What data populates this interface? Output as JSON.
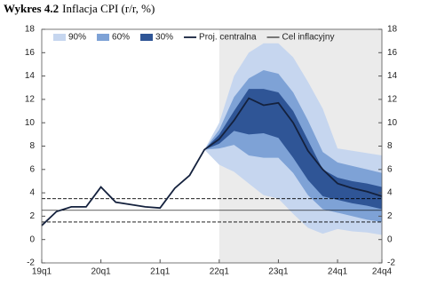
{
  "chart_data": {
    "type": "fan",
    "title_label": "Wykres 4.2",
    "title": "Inflacja CPI (r/r, %)",
    "categories": [
      "19q1",
      null,
      null,
      null,
      "20q1",
      null,
      null,
      null,
      "21q1",
      null,
      null,
      null,
      "22q1",
      null,
      null,
      null,
      "23q1",
      null,
      null,
      null,
      "24q1",
      null,
      null,
      "24q4"
    ],
    "shade_from": "22q1",
    "shade_color": "#ebebeb",
    "series": [
      {
        "name": "90%",
        "color": "#c6d6ef",
        "lower": [
          null,
          null,
          null,
          null,
          null,
          null,
          null,
          null,
          null,
          null,
          null,
          7.7,
          6.4,
          5.8,
          4.8,
          3.8,
          3.5,
          2.2,
          1.0,
          0.5,
          0.9,
          0.7,
          0.6,
          0.4
        ],
        "upper": [
          null,
          null,
          null,
          null,
          null,
          null,
          null,
          null,
          null,
          null,
          null,
          7.7,
          10.0,
          14.0,
          16.0,
          16.8,
          16.8,
          15.6,
          13.5,
          11.2,
          7.8,
          7.6,
          7.4,
          7.2
        ]
      },
      {
        "name": "60%",
        "color": "#7ea2d6",
        "lower": [
          null,
          null,
          null,
          null,
          null,
          null,
          null,
          null,
          null,
          null,
          null,
          7.7,
          7.8,
          8.1,
          7.2,
          7.0,
          7.0,
          5.7,
          3.8,
          2.6,
          2.3,
          2.0,
          1.7,
          1.5
        ],
        "upper": [
          null,
          null,
          null,
          null,
          null,
          null,
          null,
          null,
          null,
          null,
          null,
          7.7,
          9.4,
          12.2,
          13.8,
          14.5,
          14.2,
          12.6,
          10.2,
          7.5,
          6.6,
          6.3,
          6.0,
          5.7
        ]
      },
      {
        "name": "30%",
        "color": "#2f5596",
        "lower": [
          null,
          null,
          null,
          null,
          null,
          null,
          null,
          null,
          null,
          null,
          null,
          7.7,
          8.2,
          9.3,
          9.0,
          9.1,
          8.7,
          7.0,
          5.1,
          3.7,
          3.4,
          3.1,
          2.9,
          2.6
        ],
        "upper": [
          null,
          null,
          null,
          null,
          null,
          null,
          null,
          null,
          null,
          null,
          null,
          7.7,
          9.0,
          11.0,
          12.9,
          12.9,
          12.6,
          11.0,
          8.5,
          6.0,
          5.3,
          5.0,
          4.8,
          4.5
        ]
      },
      {
        "name": "Proj. centralna",
        "color": "#14213d",
        "values": [
          1.2,
          2.4,
          2.8,
          2.8,
          4.5,
          3.2,
          3.0,
          2.8,
          2.7,
          4.4,
          5.5,
          7.7,
          8.6,
          10.2,
          12.1,
          11.5,
          11.7,
          10.0,
          7.6,
          6.0,
          4.8,
          4.4,
          4.1,
          3.7
        ]
      }
    ],
    "target": {
      "name": "Cel inflacyjny",
      "color": "#000000",
      "value": 2.5,
      "range": [
        1.5,
        3.5
      ]
    },
    "ylim": [
      -2,
      18
    ],
    "yticks": [
      -2,
      0,
      2,
      4,
      6,
      8,
      10,
      12,
      14,
      16,
      18
    ],
    "y2lim": [
      -2,
      18
    ],
    "y2ticks": [
      -2,
      0,
      2,
      4,
      6,
      8,
      10,
      12,
      14,
      16,
      18
    ]
  }
}
